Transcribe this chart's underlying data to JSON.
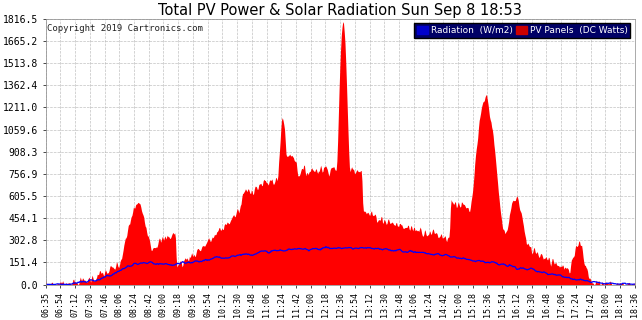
{
  "title": "Total PV Power & Solar Radiation Sun Sep 8 18:53",
  "copyright": "Copyright 2019 Cartronics.com",
  "legend_radiation": "Radiation  (W/m2)",
  "legend_pv": "PV Panels  (DC Watts)",
  "yticks": [
    0.0,
    151.4,
    302.8,
    454.1,
    605.5,
    756.9,
    908.3,
    1059.6,
    1211.0,
    1362.4,
    1513.8,
    1665.2,
    1816.5
  ],
  "ymax": 1816.5,
  "ymin": 0.0,
  "background_color": "#ffffff",
  "plot_bg_color": "#ffffff",
  "grid_color": "#999999",
  "fill_color": "#ff0000",
  "line_color": "#0000ff",
  "title_color": "#000000",
  "xtick_labels": [
    "06:35",
    "06:54",
    "07:12",
    "07:30",
    "07:46",
    "08:06",
    "08:24",
    "08:42",
    "09:00",
    "09:18",
    "09:36",
    "09:54",
    "10:12",
    "10:30",
    "10:48",
    "11:06",
    "11:24",
    "11:42",
    "12:00",
    "12:18",
    "12:36",
    "12:54",
    "13:12",
    "13:30",
    "13:48",
    "14:06",
    "14:24",
    "14:42",
    "15:00",
    "15:18",
    "15:36",
    "15:54",
    "16:12",
    "16:30",
    "16:48",
    "17:06",
    "17:24",
    "17:42",
    "18:00",
    "18:18",
    "18:36"
  ]
}
